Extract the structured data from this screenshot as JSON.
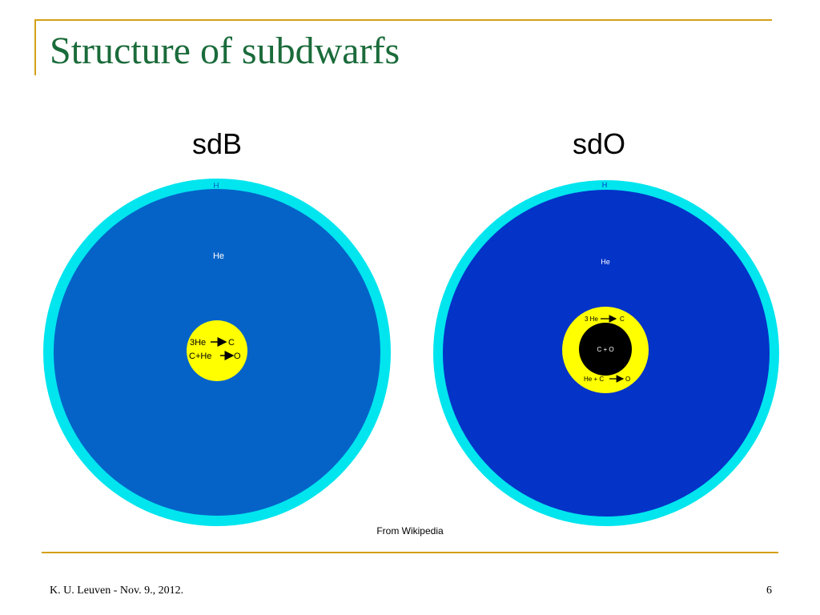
{
  "slide": {
    "title": "Structure of subdwarfs",
    "footer_left": "K. U. Leuven - Nov. 9., 2012.",
    "page_number": "6"
  },
  "diagram": {
    "credit": "From Wikipedia",
    "sdB": {
      "label": "sdB",
      "envelope_label": "H",
      "interior_label": "He",
      "core_lines": [
        "3He",
        "C",
        "C+He",
        "O"
      ]
    },
    "sdO": {
      "label": "sdO",
      "envelope_label": "H",
      "interior_label": "He",
      "inner_core_label": "C + O",
      "shell_lines": [
        "3 He",
        "C",
        "He + C",
        "O"
      ]
    }
  },
  "colors": {
    "accent_gold": "#d4a017",
    "title_green": "#1a6b3a",
    "hydrogen_shell": "#00e5ee",
    "sdB_helium": "#0563c8",
    "sdO_helium": "#0433c8",
    "burning_core": "#ffff00",
    "carbon_oxygen_core": "#000000"
  }
}
